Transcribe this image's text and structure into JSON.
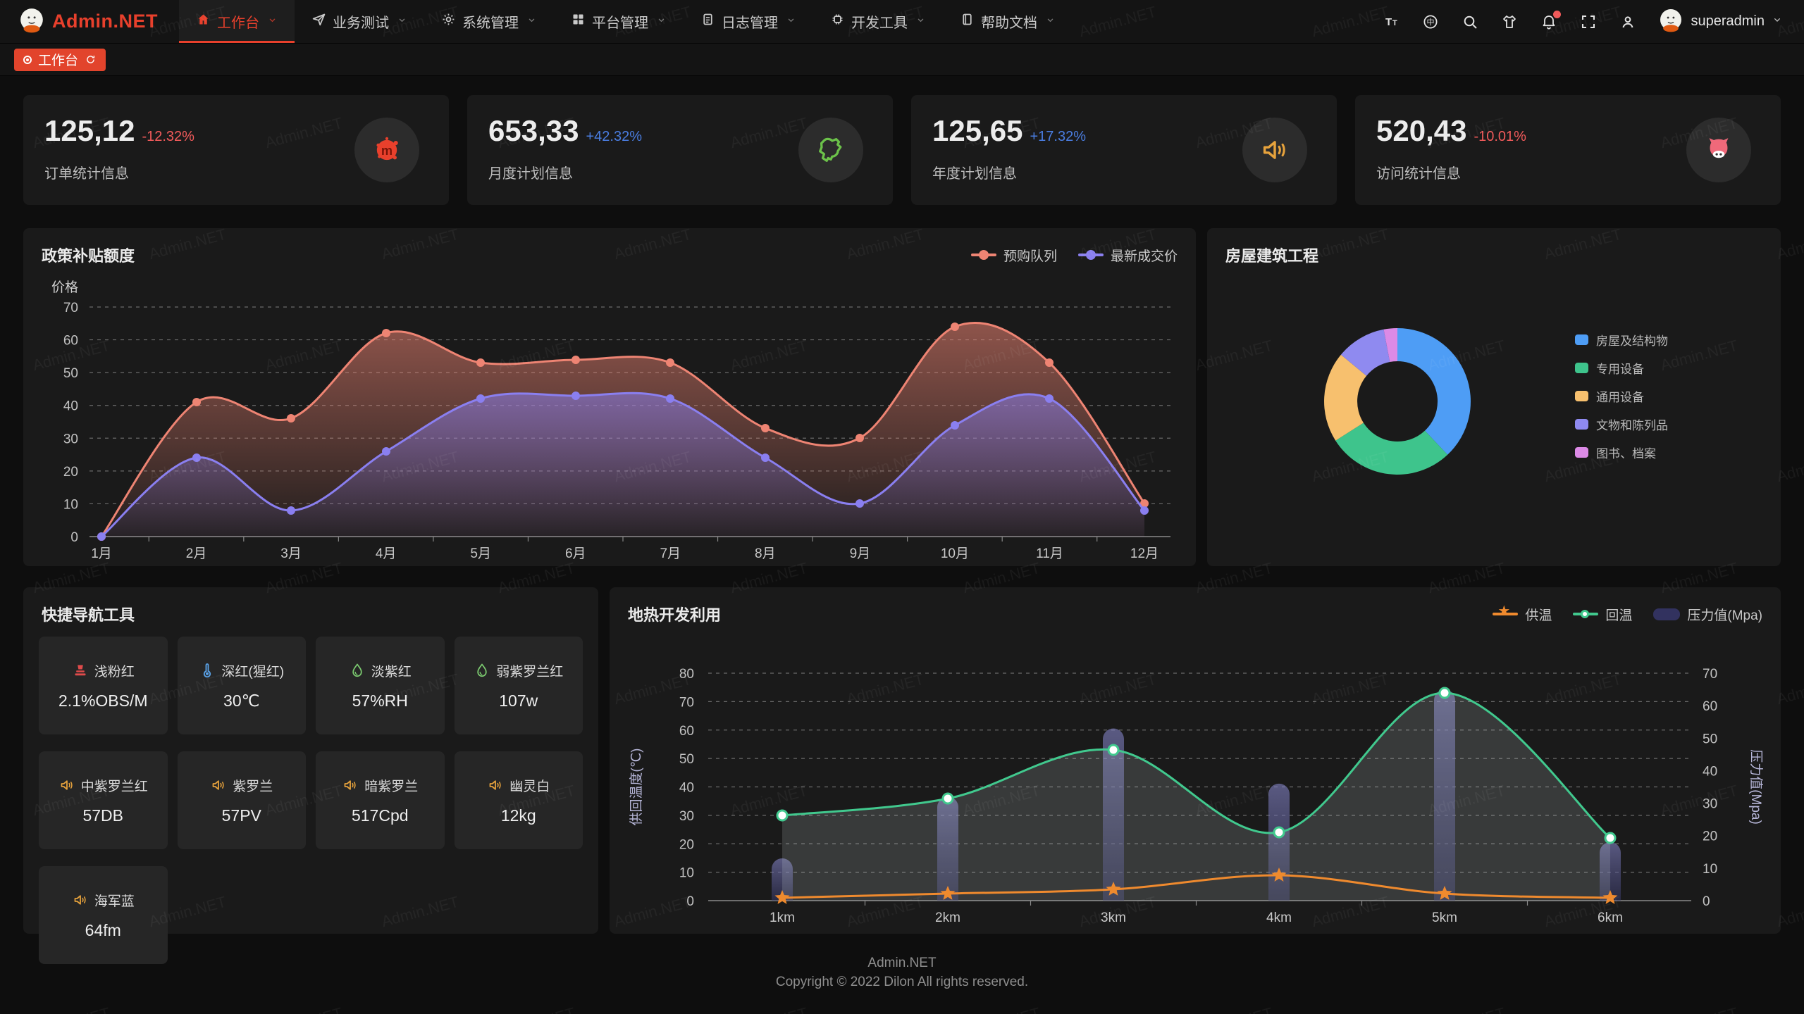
{
  "brand": {
    "name": "Admin.NET"
  },
  "watermark": {
    "text": "Admin.NET"
  },
  "nav": {
    "items": [
      {
        "label": "工作台",
        "icon": "home",
        "active": true
      },
      {
        "label": "业务测试",
        "icon": "send",
        "active": false
      },
      {
        "label": "系统管理",
        "icon": "gear",
        "active": false
      },
      {
        "label": "平台管理",
        "icon": "grid",
        "active": false
      },
      {
        "label": "日志管理",
        "icon": "document",
        "active": false
      },
      {
        "label": "开发工具",
        "icon": "chip",
        "active": false
      },
      {
        "label": "帮助文档",
        "icon": "book",
        "active": false
      }
    ],
    "right": {
      "icons": [
        "font-size",
        "language",
        "search",
        "theme",
        "bell",
        "fullscreen",
        "user"
      ],
      "bell_badge": true,
      "username": "superadmin"
    }
  },
  "tabs": {
    "items": [
      {
        "label": "工作台",
        "active": true
      }
    ]
  },
  "stat_cards": [
    {
      "value": "125,12",
      "delta": "-12.32%",
      "trend": "down",
      "label": "订单统计信息",
      "icon": "splat",
      "icon_color": "#e8402c"
    },
    {
      "value": "653,33",
      "delta": "+42.32%",
      "trend": "up",
      "label": "月度计划信息",
      "icon": "china-map",
      "icon_color": "#6cc24a"
    },
    {
      "value": "125,65",
      "delta": "+17.32%",
      "trend": "up",
      "label": "年度计划信息",
      "icon": "speaker",
      "icon_color": "#e6a23c"
    },
    {
      "value": "520,43",
      "delta": "-10.01%",
      "trend": "down",
      "label": "访问统计信息",
      "icon": "cat",
      "icon_color": "#f0697a"
    }
  ],
  "panels": {
    "quick_nav": {
      "title": "快捷导航工具"
    }
  },
  "quick_nav_items": [
    {
      "icon": "stamp",
      "icon_color": "#e04b4b",
      "name": "浅粉红",
      "value": "2.1%OBS/M"
    },
    {
      "icon": "thermometer",
      "icon_color": "#5aa2e8",
      "name": "深红(猩红)",
      "value": "30℃"
    },
    {
      "icon": "drop",
      "icon_color": "#7bc96f",
      "name": "淡紫红",
      "value": "57%RH"
    },
    {
      "icon": "drop",
      "icon_color": "#7bc96f",
      "name": "弱紫罗兰红",
      "value": "107w"
    },
    {
      "icon": "speaker",
      "icon_color": "#e6a23c",
      "name": "中紫罗兰红",
      "value": "57DB"
    },
    {
      "icon": "speaker",
      "icon_color": "#e6a23c",
      "name": "紫罗兰",
      "value": "57PV"
    },
    {
      "icon": "speaker",
      "icon_color": "#e6a23c",
      "name": "暗紫罗兰",
      "value": "517Cpd"
    },
    {
      "icon": "speaker",
      "icon_color": "#e6a23c",
      "name": "幽灵白",
      "value": "12kg"
    },
    {
      "icon": "speaker",
      "icon_color": "#e6a23c",
      "name": "海军蓝",
      "value": "64fm"
    }
  ],
  "chart_data": [
    {
      "id": "subsidy",
      "type": "area",
      "title": "政策补贴额度",
      "ylabel": "价格",
      "ylim": [
        0,
        70
      ],
      "grid": "dashed-horizontal",
      "legend_position": "top-right",
      "categories": [
        "1月",
        "2月",
        "3月",
        "4月",
        "5月",
        "6月",
        "7月",
        "8月",
        "9月",
        "10月",
        "11月",
        "12月"
      ],
      "series": [
        {
          "name": "预购队列",
          "color": "#ee8473",
          "values": [
            0,
            41,
            36,
            62,
            53,
            54,
            53,
            33,
            30,
            64,
            53,
            10
          ]
        },
        {
          "name": "最新成交价",
          "color": "#8a7ff0",
          "values": [
            0,
            24,
            8,
            26,
            42,
            43,
            42,
            24,
            10,
            34,
            42,
            8
          ]
        }
      ]
    },
    {
      "id": "building",
      "type": "pie",
      "donut": true,
      "title": "房屋建筑工程",
      "legend_position": "right",
      "labels": [
        "房屋及结构物",
        "专用设备",
        "通用设备",
        "文物和陈列品",
        "图书、档案"
      ],
      "values": [
        38,
        28,
        20,
        11,
        3
      ],
      "colors": [
        "#4e9df5",
        "#3ec48c",
        "#f7c06e",
        "#8f8af0",
        "#dc8ae6"
      ]
    },
    {
      "id": "geothermal",
      "type": "mixed",
      "title": "地热开发利用",
      "legend_position": "top-right",
      "categories": [
        "1km",
        "2km",
        "3km",
        "4km",
        "5km",
        "6km"
      ],
      "axes": {
        "left": {
          "label": "供回温度(℃)",
          "range": [
            0,
            80
          ]
        },
        "right": {
          "label": "压力值(Mpa)",
          "range": [
            0,
            70
          ]
        }
      },
      "series": [
        {
          "name": "供温",
          "type": "line",
          "marker": "star",
          "color": "#ef8a2e",
          "axis": "left",
          "values": [
            1,
            2.5,
            4,
            9,
            2.5,
            1
          ]
        },
        {
          "name": "回温",
          "type": "line",
          "marker": "circle",
          "color": "#41c98e",
          "axis": "left",
          "area": true,
          "values": [
            30,
            36,
            53,
            24,
            73,
            22
          ]
        },
        {
          "name": "压力值(Mpa)",
          "type": "bar",
          "color": "#32325f",
          "axis": "right",
          "values": [
            13,
            32,
            53,
            36,
            65,
            18
          ]
        }
      ]
    }
  ],
  "footer": {
    "line1": "Admin.NET",
    "line2": "Copyright © 2022 Dilon All rights reserved."
  }
}
